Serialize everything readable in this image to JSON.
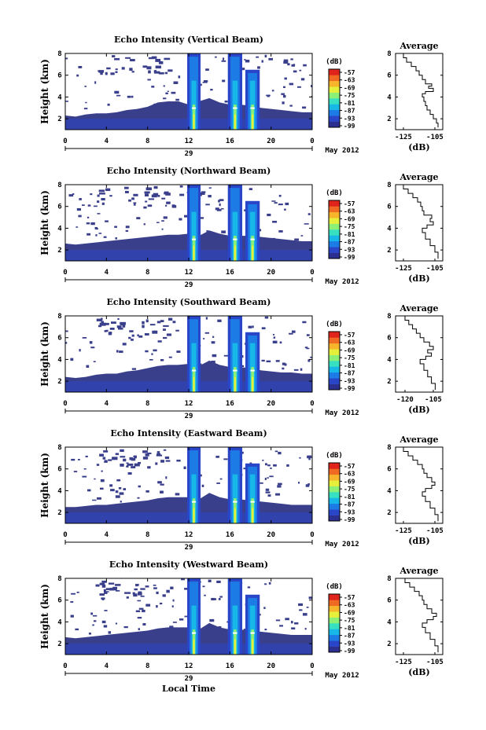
{
  "chart_data": [
    {
      "type": "heatmap",
      "title": "Echo Intensity (Vertical Beam)",
      "ylabel": "Height (km)",
      "colorbar_label": "(dB)",
      "colorbar_ticks": [
        "-57",
        "-63",
        "-69",
        "-75",
        "-81",
        "-87",
        "-93",
        "-99"
      ],
      "x_ticks": [
        "0",
        "4",
        "8",
        "12",
        "16",
        "20",
        "0"
      ],
      "y_ticks": [
        "2",
        "4",
        "6",
        "8"
      ],
      "date_label": "29",
      "month_label": "May 2012",
      "xlim": [
        0,
        24
      ],
      "ylim": [
        1,
        8
      ],
      "low_layer_top_km": [
        2.3,
        2.2,
        2.4,
        2.5,
        2.5,
        2.6,
        2.8,
        2.9,
        3.1,
        3.5,
        3.6,
        3.6,
        3.3,
        3.6,
        3.9,
        3.5,
        3.3,
        3.3,
        3.2,
        3.0,
        2.9,
        2.8,
        2.7,
        2.6,
        2.6
      ],
      "strong_columns": [
        {
          "center_h": 12.5,
          "width_h": 1.3,
          "top_km": 8
        },
        {
          "center_h": 16.5,
          "width_h": 1.4,
          "top_km": 8
        },
        {
          "center_h": 18.2,
          "width_h": 1.4,
          "top_km": 6.5
        }
      ],
      "profile": {
        "title": "Average",
        "xlabel": "(dB)",
        "x_ticks": [
          "-125",
          "-105"
        ],
        "xlim": [
          -130,
          -100
        ],
        "y_ticks": [
          "2",
          "4",
          "6",
          "8"
        ],
        "ylim": [
          1,
          8
        ],
        "points": [
          [
            -103,
            1.2
          ],
          [
            -104,
            1.6
          ],
          [
            -106,
            2.0
          ],
          [
            -108,
            2.4
          ],
          [
            -110,
            2.8
          ],
          [
            -111,
            3.2
          ],
          [
            -112,
            3.6
          ],
          [
            -113,
            4.0
          ],
          [
            -111,
            4.3
          ],
          [
            -106,
            4.5
          ],
          [
            -109,
            4.8
          ],
          [
            -107,
            5.0
          ],
          [
            -111,
            5.2
          ],
          [
            -113,
            5.6
          ],
          [
            -115,
            6.0
          ],
          [
            -117,
            6.4
          ],
          [
            -120,
            6.8
          ],
          [
            -123,
            7.2
          ],
          [
            -125,
            7.6
          ],
          [
            -127,
            8.0
          ]
        ]
      }
    },
    {
      "type": "heatmap",
      "title": "Echo Intensity (Northward Beam)",
      "ylabel": "Height (km)",
      "colorbar_label": "(dB)",
      "colorbar_ticks": [
        "-57",
        "-63",
        "-69",
        "-75",
        "-81",
        "-87",
        "-93",
        "-99"
      ],
      "x_ticks": [
        "0",
        "4",
        "8",
        "12",
        "16",
        "20",
        "0"
      ],
      "y_ticks": [
        "2",
        "4",
        "6",
        "8"
      ],
      "date_label": "29",
      "month_label": "May 2012",
      "xlim": [
        0,
        24
      ],
      "ylim": [
        1,
        8
      ],
      "low_layer_top_km": [
        2.6,
        2.5,
        2.6,
        2.7,
        2.8,
        2.9,
        3.0,
        3.1,
        3.2,
        3.3,
        3.4,
        3.4,
        3.5,
        3.3,
        3.8,
        3.5,
        3.3,
        3.3,
        3.3,
        3.2,
        3.1,
        3.0,
        2.9,
        2.8,
        2.8
      ],
      "strong_columns": [
        {
          "center_h": 12.5,
          "width_h": 1.3,
          "top_km": 8
        },
        {
          "center_h": 16.5,
          "width_h": 1.4,
          "top_km": 8
        },
        {
          "center_h": 18.2,
          "width_h": 1.4,
          "top_km": 6.5
        }
      ],
      "profile": {
        "title": "Average",
        "xlabel": "(dB)",
        "x_ticks": [
          "-125",
          "-105"
        ],
        "xlim": [
          -130,
          -100
        ],
        "y_ticks": [
          "2",
          "4",
          "6",
          "8"
        ],
        "ylim": [
          1,
          8
        ],
        "points": [
          [
            -103,
            1.2
          ],
          [
            -105,
            1.8
          ],
          [
            -108,
            2.4
          ],
          [
            -111,
            3.0
          ],
          [
            -113,
            3.6
          ],
          [
            -110,
            4.0
          ],
          [
            -106,
            4.3
          ],
          [
            -108,
            4.6
          ],
          [
            -107,
            4.9
          ],
          [
            -112,
            5.2
          ],
          [
            -113,
            5.6
          ],
          [
            -114,
            6.0
          ],
          [
            -116,
            6.4
          ],
          [
            -119,
            6.8
          ],
          [
            -122,
            7.2
          ],
          [
            -125,
            7.6
          ],
          [
            -127,
            8.0
          ]
        ]
      }
    },
    {
      "type": "heatmap",
      "title": "Echo Intensity (Southward Beam)",
      "ylabel": "Height (km)",
      "colorbar_label": "(dB)",
      "colorbar_ticks": [
        "-57",
        "-63",
        "-69",
        "-75",
        "-81",
        "-87",
        "-93",
        "-99"
      ],
      "x_ticks": [
        "0",
        "4",
        "8",
        "12",
        "16",
        "20",
        "0"
      ],
      "y_ticks": [
        "2",
        "4",
        "6",
        "8"
      ],
      "date_label": "29",
      "month_label": "May 2012",
      "xlim": [
        0,
        24
      ],
      "ylim": [
        1,
        8
      ],
      "low_layer_top_km": [
        2.4,
        2.3,
        2.4,
        2.6,
        2.7,
        2.7,
        2.9,
        3.0,
        3.2,
        3.4,
        3.5,
        3.5,
        3.6,
        3.4,
        3.9,
        3.5,
        3.3,
        3.3,
        3.2,
        3.0,
        2.9,
        2.8,
        2.8,
        2.7,
        2.7
      ],
      "strong_columns": [
        {
          "center_h": 12.5,
          "width_h": 1.3,
          "top_km": 8
        },
        {
          "center_h": 16.5,
          "width_h": 1.4,
          "top_km": 8
        },
        {
          "center_h": 18.2,
          "width_h": 1.4,
          "top_km": 6.5
        }
      ],
      "profile": {
        "title": "Average",
        "xlabel": "(dB)",
        "x_ticks": [
          "-120",
          "-105"
        ],
        "xlim": [
          -125,
          -100
        ],
        "y_ticks": [
          "2",
          "4",
          "6",
          "8"
        ],
        "ylim": [
          1,
          8
        ],
        "points": [
          [
            -104,
            1.2
          ],
          [
            -106,
            1.8
          ],
          [
            -108,
            2.4
          ],
          [
            -110,
            3.0
          ],
          [
            -112,
            3.6
          ],
          [
            -109,
            4.0
          ],
          [
            -106,
            4.3
          ],
          [
            -108,
            4.6
          ],
          [
            -105,
            4.9
          ],
          [
            -107,
            5.2
          ],
          [
            -110,
            5.6
          ],
          [
            -112,
            6.0
          ],
          [
            -114,
            6.4
          ],
          [
            -116,
            6.8
          ],
          [
            -118,
            7.2
          ],
          [
            -120,
            7.6
          ],
          [
            -121,
            8.0
          ]
        ]
      }
    },
    {
      "type": "heatmap",
      "title": "Echo Intensity (Eastward Beam)",
      "ylabel": "Height (km)",
      "colorbar_label": "(dB)",
      "colorbar_ticks": [
        "-57",
        "-63",
        "-69",
        "-75",
        "-81",
        "-87",
        "-93",
        "-99"
      ],
      "x_ticks": [
        "0",
        "4",
        "8",
        "12",
        "16",
        "20",
        "0"
      ],
      "y_ticks": [
        "2",
        "4",
        "6",
        "8"
      ],
      "date_label": "29",
      "month_label": "May 2012",
      "xlim": [
        0,
        24
      ],
      "ylim": [
        1,
        8
      ],
      "low_layer_top_km": [
        2.5,
        2.5,
        2.6,
        2.7,
        2.7,
        2.8,
        2.9,
        3.0,
        3.1,
        3.3,
        3.4,
        3.4,
        3.4,
        3.2,
        3.8,
        3.4,
        3.2,
        3.2,
        3.1,
        3.0,
        2.9,
        2.8,
        2.7,
        2.7,
        2.7
      ],
      "strong_columns": [
        {
          "center_h": 12.5,
          "width_h": 1.3,
          "top_km": 8
        },
        {
          "center_h": 16.5,
          "width_h": 1.4,
          "top_km": 8
        },
        {
          "center_h": 18.2,
          "width_h": 1.4,
          "top_km": 6.5
        }
      ],
      "profile": {
        "title": "Average",
        "xlabel": "(dB)",
        "x_ticks": [
          "-125",
          "-105"
        ],
        "xlim": [
          -130,
          -100
        ],
        "y_ticks": [
          "2",
          "4",
          "6",
          "8"
        ],
        "ylim": [
          1,
          8
        ],
        "points": [
          [
            -103,
            1.2
          ],
          [
            -105,
            1.8
          ],
          [
            -108,
            2.4
          ],
          [
            -111,
            3.0
          ],
          [
            -113,
            3.5
          ],
          [
            -111,
            3.9
          ],
          [
            -107,
            4.2
          ],
          [
            -105,
            4.5
          ],
          [
            -107,
            4.8
          ],
          [
            -110,
            5.2
          ],
          [
            -112,
            5.6
          ],
          [
            -113,
            6.0
          ],
          [
            -116,
            6.4
          ],
          [
            -119,
            6.8
          ],
          [
            -122,
            7.2
          ],
          [
            -125,
            7.6
          ],
          [
            -127,
            8.0
          ]
        ]
      }
    },
    {
      "type": "heatmap",
      "title": "Echo Intensity (Westward Beam)",
      "ylabel": "Height (km)",
      "colorbar_label": "(dB)",
      "colorbar_ticks": [
        "-57",
        "-63",
        "-69",
        "-75",
        "-81",
        "-87",
        "-93",
        "-99"
      ],
      "x_ticks": [
        "0",
        "4",
        "8",
        "12",
        "16",
        "20",
        "0"
      ],
      "y_ticks": [
        "2",
        "4",
        "6",
        "8"
      ],
      "date_label": "29",
      "month_label": "May 2012",
      "xlim": [
        0,
        24
      ],
      "ylim": [
        1,
        8
      ],
      "low_layer_top_km": [
        2.6,
        2.5,
        2.6,
        2.7,
        2.8,
        2.9,
        3.0,
        3.1,
        3.2,
        3.4,
        3.5,
        3.5,
        3.5,
        3.3,
        3.9,
        3.5,
        3.3,
        3.3,
        3.2,
        3.1,
        3.0,
        2.9,
        2.8,
        2.8,
        2.8
      ],
      "strong_columns": [
        {
          "center_h": 12.5,
          "width_h": 1.3,
          "top_km": 8
        },
        {
          "center_h": 16.5,
          "width_h": 1.4,
          "top_km": 8
        },
        {
          "center_h": 18.2,
          "width_h": 1.4,
          "top_km": 6.5
        }
      ],
      "profile": {
        "title": "Average",
        "xlabel": "(dB)",
        "x_ticks": [
          "-125",
          "-105"
        ],
        "xlim": [
          -130,
          -100
        ],
        "y_ticks": [
          "2",
          "4",
          "6",
          "8"
        ],
        "ylim": [
          1,
          8
        ],
        "points": [
          [
            -103,
            1.2
          ],
          [
            -105,
            1.8
          ],
          [
            -108,
            2.4
          ],
          [
            -111,
            3.0
          ],
          [
            -113,
            3.5
          ],
          [
            -110,
            3.9
          ],
          [
            -106,
            4.2
          ],
          [
            -104,
            4.5
          ],
          [
            -107,
            4.8
          ],
          [
            -110,
            5.2
          ],
          [
            -112,
            5.6
          ],
          [
            -113,
            6.0
          ],
          [
            -115,
            6.4
          ],
          [
            -118,
            6.8
          ],
          [
            -121,
            7.2
          ],
          [
            -124,
            7.6
          ],
          [
            -126,
            8.0
          ]
        ]
      }
    }
  ],
  "bottom_xlabel": "Local Time",
  "colormap": [
    "#2b2f8f",
    "#2a46c8",
    "#1d7be6",
    "#17b7e8",
    "#36e0c0",
    "#8cf076",
    "#e6f03a",
    "#f6b52b",
    "#f06a24",
    "#e0241c"
  ],
  "background_color": "#3a3f8c"
}
